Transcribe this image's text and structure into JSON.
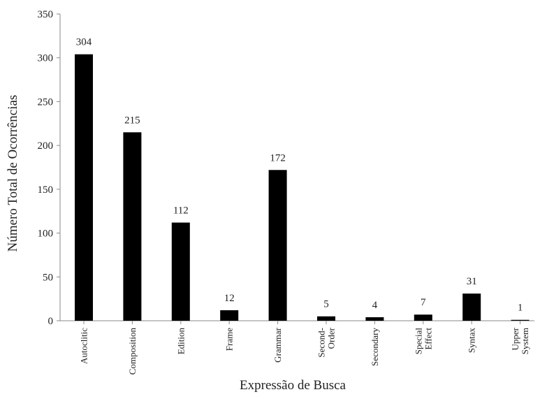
{
  "chart_data": {
    "type": "bar",
    "title": "",
    "xlabel": "Expressão de Busca",
    "ylabel": "Número Total de Ocorrências",
    "ylim": [
      0,
      350
    ],
    "yticks": [
      0,
      50,
      100,
      150,
      200,
      250,
      300,
      350
    ],
    "categories": [
      [
        "Autoclitic"
      ],
      [
        "Composition"
      ],
      [
        "Edition"
      ],
      [
        "Frame"
      ],
      [
        "Grammar"
      ],
      [
        "Second-",
        "Order"
      ],
      [
        "Secondary"
      ],
      [
        "Special",
        "Effect"
      ],
      [
        "Syntax"
      ],
      [
        "Upper",
        "System"
      ]
    ],
    "values": [
      304,
      215,
      112,
      12,
      172,
      5,
      4,
      7,
      31,
      1
    ],
    "grid": false,
    "legend": "none",
    "bar_color": "#000000"
  }
}
